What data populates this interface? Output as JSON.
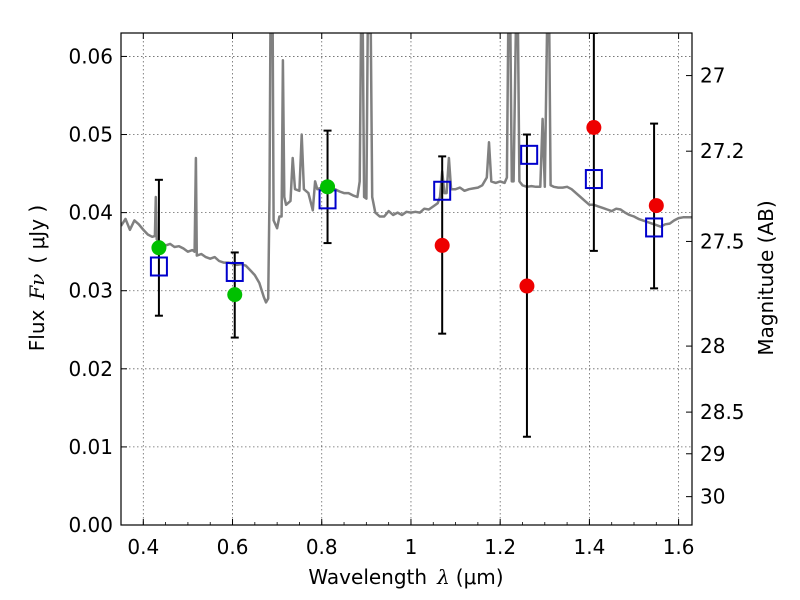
{
  "chart_data": {
    "type": "scatter",
    "xlabel": {
      "prefix": "Wavelength",
      "symbol": "λ",
      "unit": "(μm)"
    },
    "ylabel": {
      "prefix": "Flux",
      "symbol": "Fν",
      "unit": "( μJy )"
    },
    "y2label": "Magnitude (AB)",
    "xlim": [
      0.35,
      1.63
    ],
    "ylim": [
      0.0,
      0.063
    ],
    "grid": true,
    "x_ticks": [
      {
        "value": 0.4,
        "label": "0.4"
      },
      {
        "value": 0.6,
        "label": "0.6"
      },
      {
        "value": 0.8,
        "label": "0.8"
      },
      {
        "value": 1.0,
        "label": "1"
      },
      {
        "value": 1.2,
        "label": "1.2"
      },
      {
        "value": 1.4,
        "label": "1.4"
      },
      {
        "value": 1.6,
        "label": "1.6"
      }
    ],
    "y_ticks": [
      {
        "value": 0.0,
        "label": "0.00"
      },
      {
        "value": 0.01,
        "label": "0.01"
      },
      {
        "value": 0.02,
        "label": "0.02"
      },
      {
        "value": 0.03,
        "label": "0.03"
      },
      {
        "value": 0.04,
        "label": "0.04"
      },
      {
        "value": 0.05,
        "label": "0.05"
      },
      {
        "value": 0.06,
        "label": "0.06"
      }
    ],
    "y2_ticks": [
      {
        "value": 27,
        "label": "27"
      },
      {
        "value": 27.2,
        "label": "27.2"
      },
      {
        "value": 27.5,
        "label": "27.5"
      },
      {
        "value": 28,
        "label": "28"
      },
      {
        "value": 28.5,
        "label": "28.5"
      },
      {
        "value": 29,
        "label": "29"
      },
      {
        "value": 30,
        "label": "30"
      }
    ],
    "colors": {
      "spectrum": "#808080",
      "model": "#0000cc",
      "green": "#00c000",
      "red": "#ee0000",
      "errorbar": "#000000",
      "grid": "#666666"
    },
    "errorbars": [
      {
        "x": 0.435,
        "y": 0.0355,
        "lo": 0.0268,
        "hi": 0.0442
      },
      {
        "x": 0.605,
        "y": 0.0295,
        "lo": 0.024,
        "hi": 0.0349
      },
      {
        "x": 0.813,
        "y": 0.0433,
        "lo": 0.0361,
        "hi": 0.0505
      },
      {
        "x": 1.07,
        "y": 0.0358,
        "lo": 0.0245,
        "hi": 0.0472
      },
      {
        "x": 1.26,
        "y": 0.0306,
        "lo": 0.0113,
        "hi": 0.05
      },
      {
        "x": 1.41,
        "y": 0.0509,
        "lo": 0.0351,
        "hi": 0.063
      },
      {
        "x": 1.545,
        "y": 0.0409,
        "lo": 0.0303,
        "hi": 0.0514
      }
    ],
    "model_points": [
      {
        "x": 0.435,
        "y": 0.0331
      },
      {
        "x": 0.605,
        "y": 0.0324
      },
      {
        "x": 0.813,
        "y": 0.0417
      },
      {
        "x": 1.07,
        "y": 0.0428
      },
      {
        "x": 1.265,
        "y": 0.0474
      },
      {
        "x": 1.41,
        "y": 0.0443
      },
      {
        "x": 1.545,
        "y": 0.0381
      }
    ],
    "green_points": [
      {
        "x": 0.435,
        "y": 0.0355
      },
      {
        "x": 0.605,
        "y": 0.0295
      },
      {
        "x": 0.813,
        "y": 0.0433
      }
    ],
    "red_points": [
      {
        "x": 1.07,
        "y": 0.0358
      },
      {
        "x": 1.26,
        "y": 0.0306
      },
      {
        "x": 1.41,
        "y": 0.0509
      },
      {
        "x": 1.55,
        "y": 0.0409
      }
    ],
    "spectrum": [
      [
        0.35,
        0.0383
      ],
      [
        0.36,
        0.0392
      ],
      [
        0.37,
        0.0378
      ],
      [
        0.38,
        0.039
      ],
      [
        0.39,
        0.0385
      ],
      [
        0.4,
        0.0378
      ],
      [
        0.41,
        0.0372
      ],
      [
        0.42,
        0.0369
      ],
      [
        0.426,
        0.037
      ],
      [
        0.428,
        0.042
      ],
      [
        0.43,
        0.0366
      ],
      [
        0.44,
        0.0362
      ],
      [
        0.45,
        0.0358
      ],
      [
        0.46,
        0.036
      ],
      [
        0.47,
        0.0356
      ],
      [
        0.48,
        0.0357
      ],
      [
        0.49,
        0.0354
      ],
      [
        0.5,
        0.035
      ],
      [
        0.51,
        0.0352
      ],
      [
        0.515,
        0.035
      ],
      [
        0.518,
        0.047
      ],
      [
        0.52,
        0.0345
      ],
      [
        0.53,
        0.0347
      ],
      [
        0.54,
        0.0343
      ],
      [
        0.55,
        0.0341
      ],
      [
        0.56,
        0.0343
      ],
      [
        0.57,
        0.0338
      ],
      [
        0.58,
        0.0336
      ],
      [
        0.59,
        0.0336
      ],
      [
        0.6,
        0.0335
      ],
      [
        0.61,
        0.0333
      ],
      [
        0.62,
        0.0334
      ],
      [
        0.63,
        0.0332
      ],
      [
        0.64,
        0.0326
      ],
      [
        0.65,
        0.032
      ],
      [
        0.66,
        0.031
      ],
      [
        0.67,
        0.0292
      ],
      [
        0.675,
        0.0285
      ],
      [
        0.68,
        0.029
      ],
      [
        0.683,
        0.042
      ],
      [
        0.685,
        0.063
      ],
      [
        0.69,
        0.063
      ],
      [
        0.692,
        0.039
      ],
      [
        0.7,
        0.038
      ],
      [
        0.705,
        0.0395
      ],
      [
        0.71,
        0.0395
      ],
      [
        0.713,
        0.0595
      ],
      [
        0.716,
        0.042
      ],
      [
        0.72,
        0.041
      ],
      [
        0.73,
        0.0415
      ],
      [
        0.735,
        0.047
      ],
      [
        0.74,
        0.043
      ],
      [
        0.75,
        0.0428
      ],
      [
        0.755,
        0.05
      ],
      [
        0.76,
        0.043
      ],
      [
        0.77,
        0.0425
      ],
      [
        0.78,
        0.0403
      ],
      [
        0.785,
        0.044
      ],
      [
        0.79,
        0.043
      ],
      [
        0.8,
        0.0432
      ],
      [
        0.81,
        0.043
      ],
      [
        0.82,
        0.0428
      ],
      [
        0.83,
        0.043
      ],
      [
        0.84,
        0.0427
      ],
      [
        0.85,
        0.0425
      ],
      [
        0.86,
        0.0425
      ],
      [
        0.87,
        0.0422
      ],
      [
        0.88,
        0.042
      ],
      [
        0.885,
        0.044
      ],
      [
        0.888,
        0.063
      ],
      [
        0.892,
        0.063
      ],
      [
        0.895,
        0.042
      ],
      [
        0.9,
        0.0418
      ],
      [
        0.903,
        0.063
      ],
      [
        0.91,
        0.063
      ],
      [
        0.913,
        0.042
      ],
      [
        0.92,
        0.04
      ],
      [
        0.93,
        0.0395
      ],
      [
        0.94,
        0.0395
      ],
      [
        0.95,
        0.0402
      ],
      [
        0.96,
        0.0397
      ],
      [
        0.97,
        0.04
      ],
      [
        0.98,
        0.0397
      ],
      [
        0.99,
        0.0401
      ],
      [
        1.0,
        0.04
      ],
      [
        1.01,
        0.0401
      ],
      [
        1.02,
        0.04
      ],
      [
        1.03,
        0.0405
      ],
      [
        1.04,
        0.0404
      ],
      [
        1.05,
        0.0408
      ],
      [
        1.06,
        0.0412
      ],
      [
        1.065,
        0.042
      ],
      [
        1.07,
        0.0453
      ],
      [
        1.075,
        0.0425
      ],
      [
        1.08,
        0.0425
      ],
      [
        1.085,
        0.047
      ],
      [
        1.09,
        0.043
      ],
      [
        1.1,
        0.043
      ],
      [
        1.11,
        0.0432
      ],
      [
        1.12,
        0.0428
      ],
      [
        1.13,
        0.043
      ],
      [
        1.14,
        0.0431
      ],
      [
        1.15,
        0.0432
      ],
      [
        1.16,
        0.0435
      ],
      [
        1.17,
        0.0445
      ],
      [
        1.175,
        0.049
      ],
      [
        1.18,
        0.044
      ],
      [
        1.19,
        0.0438
      ],
      [
        1.2,
        0.044
      ],
      [
        1.21,
        0.0438
      ],
      [
        1.215,
        0.0445
      ],
      [
        1.218,
        0.063
      ],
      [
        1.223,
        0.063
      ],
      [
        1.226,
        0.044
      ],
      [
        1.23,
        0.044
      ],
      [
        1.235,
        0.063
      ],
      [
        1.24,
        0.063
      ],
      [
        1.243,
        0.044
      ],
      [
        1.25,
        0.0435
      ],
      [
        1.26,
        0.0433
      ],
      [
        1.27,
        0.0434
      ],
      [
        1.28,
        0.0433
      ],
      [
        1.29,
        0.0433
      ],
      [
        1.295,
        0.052
      ],
      [
        1.3,
        0.0433
      ],
      [
        1.305,
        0.063
      ],
      [
        1.31,
        0.063
      ],
      [
        1.313,
        0.0435
      ],
      [
        1.32,
        0.0433
      ],
      [
        1.33,
        0.0432
      ],
      [
        1.34,
        0.0432
      ],
      [
        1.35,
        0.0433
      ],
      [
        1.36,
        0.043
      ],
      [
        1.37,
        0.0425
      ],
      [
        1.38,
        0.042
      ],
      [
        1.39,
        0.0415
      ],
      [
        1.4,
        0.041
      ],
      [
        1.41,
        0.041
      ],
      [
        1.42,
        0.0408
      ],
      [
        1.43,
        0.0406
      ],
      [
        1.44,
        0.0404
      ],
      [
        1.45,
        0.0402
      ],
      [
        1.46,
        0.0405
      ],
      [
        1.47,
        0.0404
      ],
      [
        1.48,
        0.04
      ],
      [
        1.49,
        0.0397
      ],
      [
        1.5,
        0.0395
      ],
      [
        1.51,
        0.0392
      ],
      [
        1.52,
        0.039
      ],
      [
        1.53,
        0.0388
      ],
      [
        1.54,
        0.0386
      ],
      [
        1.55,
        0.0384
      ],
      [
        1.56,
        0.0382
      ],
      [
        1.57,
        0.0385
      ],
      [
        1.58,
        0.0386
      ],
      [
        1.59,
        0.039
      ],
      [
        1.6,
        0.0393
      ],
      [
        1.61,
        0.0394
      ],
      [
        1.62,
        0.0394
      ],
      [
        1.63,
        0.0394
      ]
    ]
  }
}
